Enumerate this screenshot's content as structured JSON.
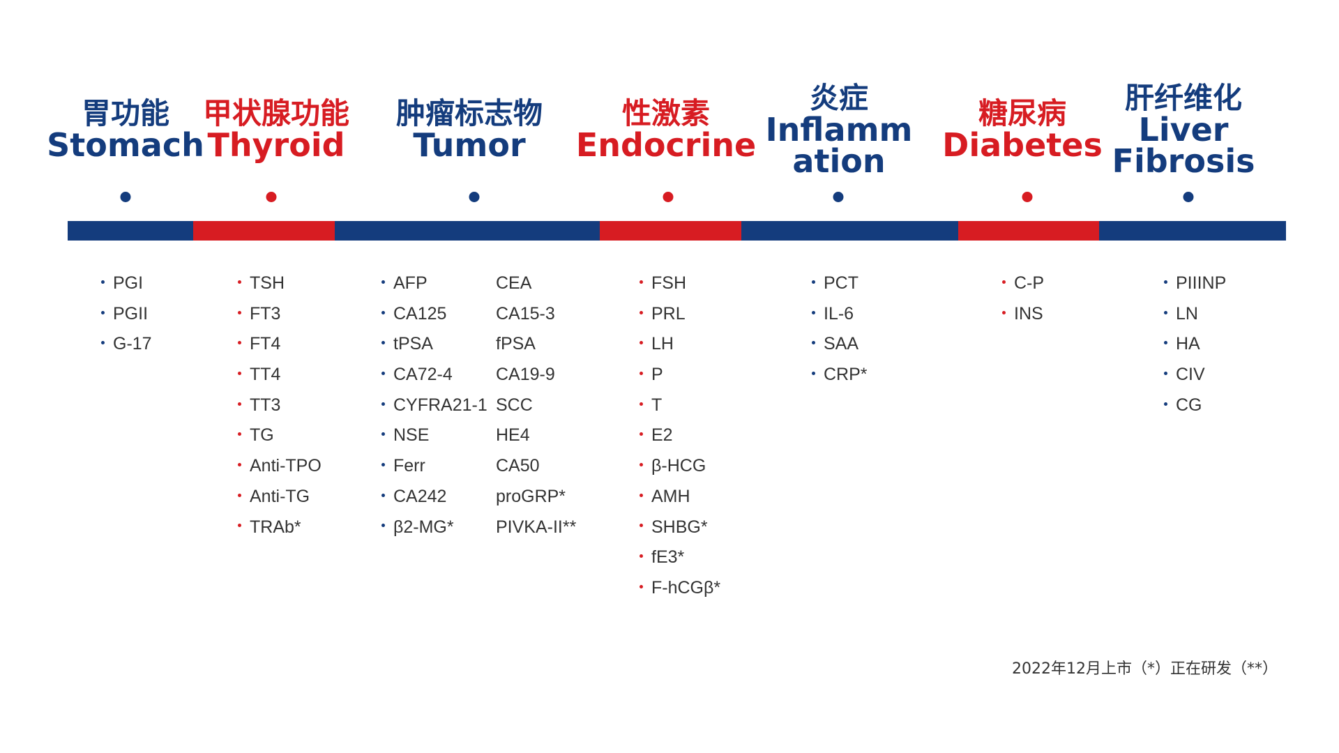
{
  "categories": [
    {
      "zh": "胃功能",
      "en_lines": [
        "Stomach"
      ],
      "color": "blue"
    },
    {
      "zh": "甲状腺功能",
      "en_lines": [
        "Thyroid"
      ],
      "color": "red"
    },
    {
      "zh": "肿瘤标志物",
      "en_lines": [
        "Tumor"
      ],
      "color": "blue"
    },
    {
      "zh": "性激素",
      "en_lines": [
        "Endocrine"
      ],
      "color": "red"
    },
    {
      "zh": "炎症",
      "en_lines": [
        "Inflamm",
        "ation"
      ],
      "color": "blue"
    },
    {
      "zh": "糖尿病",
      "en_lines": [
        "Diabetes"
      ],
      "color": "red"
    },
    {
      "zh": "肝纤维化",
      "en_lines": [
        "Liver",
        "Fibrosis"
      ],
      "color": "blue"
    }
  ],
  "lists": {
    "stomach": [
      "PGI",
      "PGII",
      "G-17"
    ],
    "thyroid": [
      "TSH",
      "FT3",
      "FT4",
      "TT4",
      "TT3",
      "TG",
      "Anti-TPO",
      "Anti-TG",
      "TRAb*"
    ],
    "tumor_col1": [
      "AFP",
      "CA125",
      "tPSA",
      "CA72-4",
      "CYFRA21-1",
      "NSE",
      "Ferr",
      "CA242",
      "β2-MG*"
    ],
    "tumor_col2": [
      "CEA",
      "CA15-3",
      "fPSA",
      "CA19-9",
      "SCC",
      "HE4",
      "CA50",
      "proGRP*",
      "PIVKA-II**"
    ],
    "endocrine": [
      "FSH",
      "PRL",
      "LH",
      "P",
      "T",
      "E2",
      "β-HCG",
      "AMH",
      "SHBG*",
      "fE3*",
      "F-hCGβ*"
    ],
    "inflammation": [
      "PCT",
      "IL-6",
      "SAA",
      "CRP*"
    ],
    "diabetes": [
      "C-P",
      "INS"
    ],
    "liver": [
      "PIIINP",
      "LN",
      "HA",
      "CIV",
      "CG"
    ]
  },
  "footnote": "2022年12月上市（*）正在研发（**）",
  "colors": {
    "blue": "#143c7d",
    "red": "#d71c22",
    "text": "#333333"
  }
}
